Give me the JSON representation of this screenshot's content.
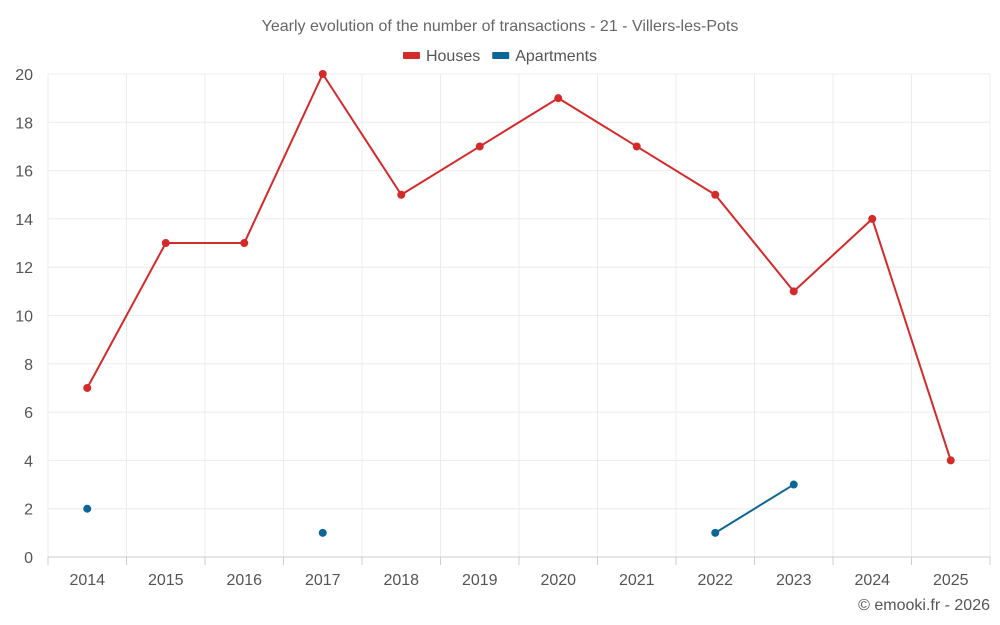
{
  "chart_data": {
    "type": "line",
    "title": "Yearly evolution of the number of transactions - 21 - Villers-les-Pots",
    "xlabel": "",
    "ylabel": "",
    "categories": [
      "2014",
      "2015",
      "2016",
      "2017",
      "2018",
      "2019",
      "2020",
      "2021",
      "2022",
      "2023",
      "2024",
      "2025"
    ],
    "ylim": [
      0,
      20
    ],
    "yticks": [
      0,
      2,
      4,
      6,
      8,
      10,
      12,
      14,
      16,
      18,
      20
    ],
    "grid": true,
    "legend_position": "top-center",
    "series": [
      {
        "name": "Houses",
        "color": "#d42a2a",
        "values": [
          7,
          13,
          13,
          20,
          15,
          17,
          19,
          17,
          15,
          11,
          14,
          4
        ]
      },
      {
        "name": "Apartments",
        "color": "#0d6796",
        "values": [
          2,
          null,
          null,
          1,
          null,
          null,
          null,
          null,
          1,
          3,
          null,
          null
        ]
      }
    ]
  },
  "credit": "© emooki.fr - 2026"
}
